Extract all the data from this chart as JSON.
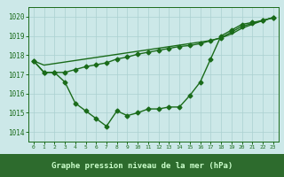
{
  "x": [
    0,
    1,
    2,
    3,
    4,
    5,
    6,
    7,
    8,
    9,
    10,
    11,
    12,
    13,
    14,
    15,
    16,
    17,
    18,
    19,
    20,
    21,
    22,
    23
  ],
  "line_main": [
    1017.7,
    1017.1,
    1017.1,
    1016.6,
    1015.5,
    1015.1,
    1014.7,
    1014.3,
    1015.1,
    1014.85,
    1015.0,
    1015.2,
    1015.2,
    1015.3,
    1015.3,
    1015.9,
    1016.6,
    1017.8,
    1019.0,
    1019.3,
    1019.6,
    1019.7,
    1019.8,
    1019.95
  ],
  "line_upper": [
    1017.7,
    1017.1,
    1017.1,
    1017.1,
    1017.25,
    1017.4,
    1017.5,
    1017.6,
    1017.8,
    1017.9,
    1018.05,
    1018.15,
    1018.25,
    1018.35,
    1018.45,
    1018.5,
    1018.6,
    1018.75,
    1018.9,
    1019.2,
    1019.5,
    1019.65,
    1019.8,
    1019.95
  ],
  "line_straight": [
    1017.7,
    1017.48,
    1017.56,
    1017.64,
    1017.72,
    1017.8,
    1017.88,
    1017.96,
    1018.04,
    1018.12,
    1018.2,
    1018.28,
    1018.36,
    1018.44,
    1018.52,
    1018.6,
    1018.68,
    1018.76,
    1018.9,
    1019.1,
    1019.4,
    1019.6,
    1019.8,
    1019.95
  ],
  "line_color": "#1a6b1a",
  "bg_color": "#cce8e8",
  "grid_color": "#aad0d0",
  "label_bg": "#2d6b2d",
  "label_fg": "#ccffcc",
  "xlabel": "Graphe pression niveau de la mer (hPa)",
  "ylim": [
    1013.5,
    1020.5
  ],
  "xlim": [
    -0.5,
    23.5
  ],
  "yticks": [
    1014,
    1015,
    1016,
    1017,
    1018,
    1019,
    1020
  ],
  "xticks": [
    0,
    1,
    2,
    3,
    4,
    5,
    6,
    7,
    8,
    9,
    10,
    11,
    12,
    13,
    14,
    15,
    16,
    17,
    18,
    19,
    20,
    21,
    22,
    23
  ],
  "marker": "D",
  "markersize": 2.5,
  "linewidth": 1.0
}
